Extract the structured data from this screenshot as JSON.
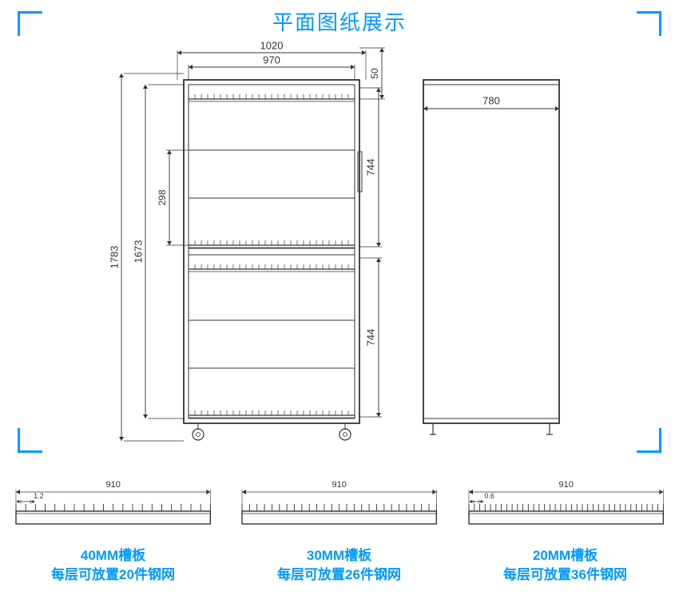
{
  "title": "平面图纸展示",
  "accent_color": "#0099ff",
  "line_color": "#333333",
  "bg_color": "#ffffff",
  "front_view": {
    "dims": {
      "overall_width": "1020",
      "inner_width": "970",
      "overall_height": "1783",
      "inner_height": "1673",
      "shelf_gap": "298",
      "compartment_height_upper": "744",
      "compartment_height_lower": "744",
      "top_offset": "50"
    }
  },
  "side_view": {
    "depth": "780"
  },
  "slot_boards": [
    {
      "title": "40MM槽板",
      "subtitle": "每层可放置20件钢网",
      "width_dim": "910",
      "slot_dim": "1.2",
      "slot_count": 20
    },
    {
      "title": "30MM槽板",
      "subtitle": "每层可放置26件钢网",
      "width_dim": "910",
      "slot_dim": "",
      "slot_count": 26
    },
    {
      "title": "20MM槽板",
      "subtitle": "每层可放置36件钢网",
      "width_dim": "910",
      "slot_dim": "0.6",
      "slot_count": 36
    }
  ]
}
